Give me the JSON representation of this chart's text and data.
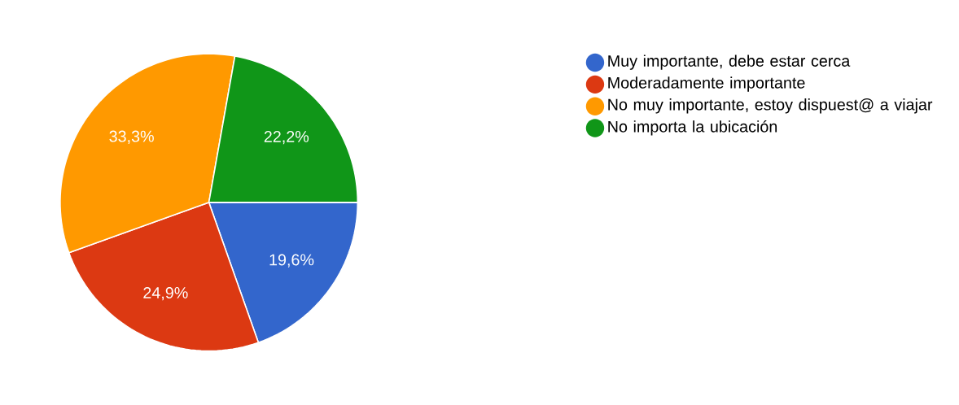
{
  "chart_data": {
    "type": "pie",
    "categories": [
      "Muy importante, debe estar cerca",
      "Moderadamente importante",
      "No muy importante, estoy dispuest@ a viajar",
      "No importa la ubicación"
    ],
    "values": [
      19.6,
      24.9,
      33.3,
      22.2
    ],
    "colors": [
      "#3366cc",
      "#dc3912",
      "#ff9900",
      "#109618"
    ],
    "value_labels": [
      "19,6%",
      "24,9%",
      "33,3%",
      "22,2%"
    ],
    "legend": "right"
  }
}
